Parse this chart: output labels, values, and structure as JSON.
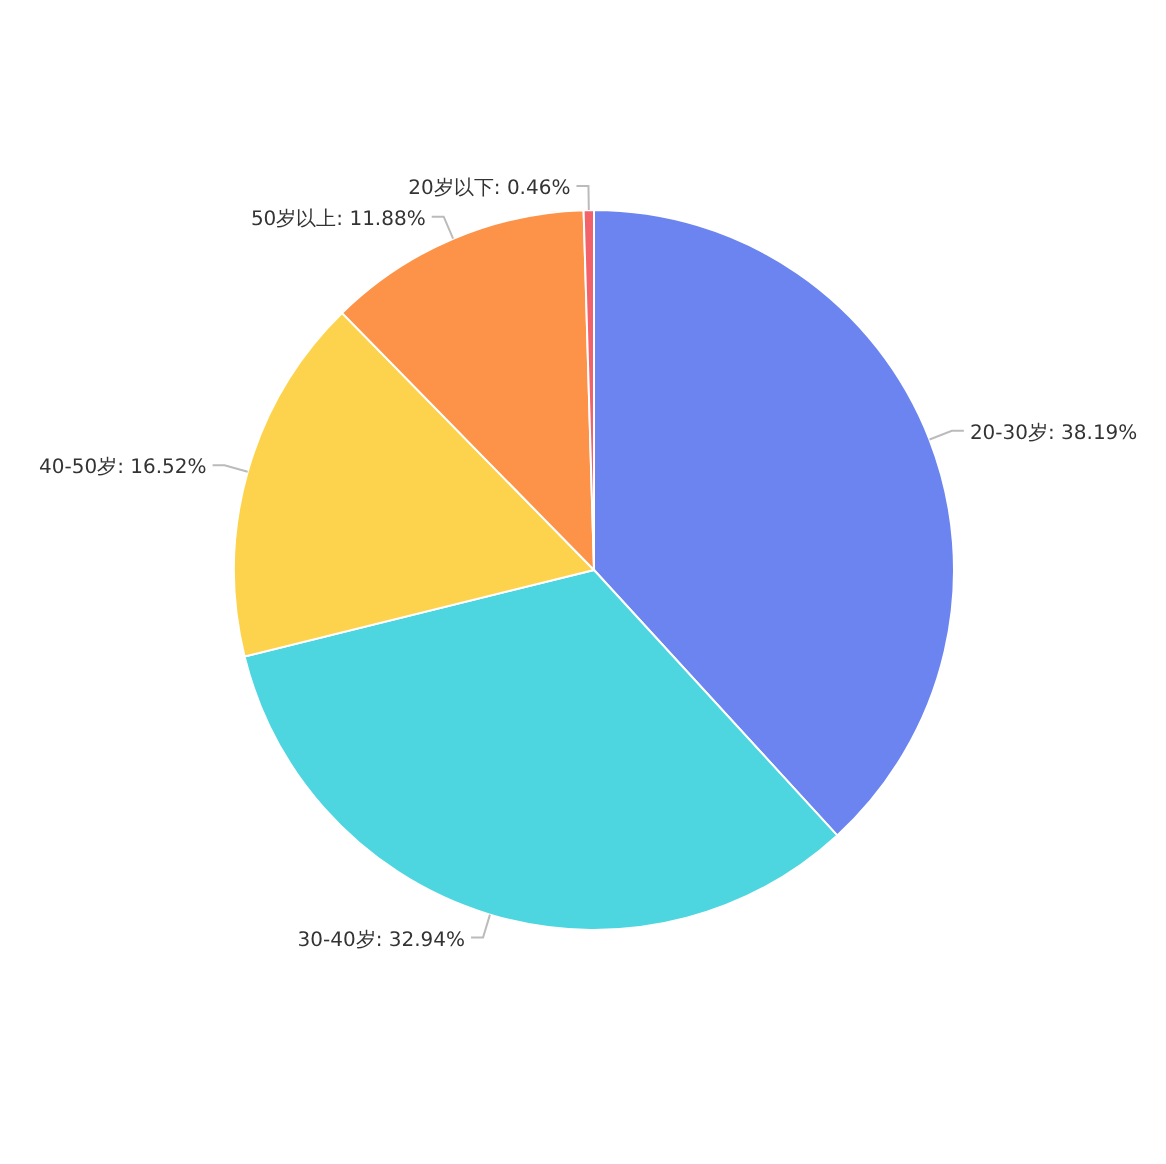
{
  "chart_data": {
    "type": "pie",
    "categories": [
      "20-30岁",
      "30-40岁",
      "40-50岁",
      "50岁以上",
      "20岁以下"
    ],
    "values": [
      38.19,
      32.94,
      16.52,
      11.88,
      0.46
    ],
    "value_labels": [
      "38.19%",
      "32.94%",
      "16.52%",
      "11.88%",
      "0.46%"
    ],
    "colors": [
      "#6b84f0",
      "#4dd6e0",
      "#fdd34e",
      "#fd9348",
      "#f1626a"
    ],
    "legend": false
  }
}
